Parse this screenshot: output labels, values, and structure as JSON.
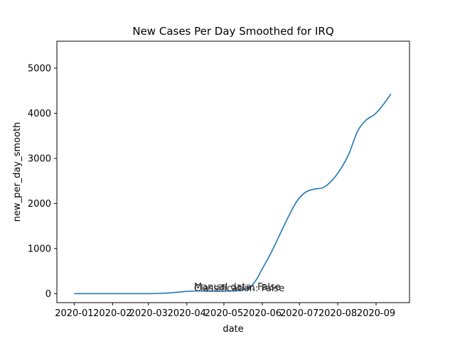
{
  "chart_data": {
    "type": "line",
    "title": "New Cases Per Day Smoothed for IRQ",
    "xlabel": "date",
    "ylabel": "new_per_day_smooth",
    "x_ticks": [
      "2020-01",
      "2020-02",
      "2020-03",
      "2020-04",
      "2020-05",
      "2020-06",
      "2020-07",
      "2020-08",
      "2020-09"
    ],
    "y_ticks": [
      0,
      1000,
      2000,
      3000,
      4000,
      5000
    ],
    "xlim": [
      "2019-12-18",
      "2020-09-28"
    ],
    "ylim": [
      -200,
      5600
    ],
    "grid": false,
    "color": "#1f77b4",
    "annotations": [
      "Manual data: False",
      "Classification: False"
    ],
    "series": [
      {
        "x": [
          "2020-01-01",
          "2020-01-15",
          "2020-02-01",
          "2020-02-15",
          "2020-03-01",
          "2020-03-10",
          "2020-03-20",
          "2020-04-01",
          "2020-04-10",
          "2020-04-20",
          "2020-05-01",
          "2020-05-15",
          "2020-05-22",
          "2020-05-27",
          "2020-06-01",
          "2020-06-08",
          "2020-06-15",
          "2020-06-22",
          "2020-06-29",
          "2020-07-06",
          "2020-07-13",
          "2020-07-20",
          "2020-07-27",
          "2020-08-03",
          "2020-08-10",
          "2020-08-17",
          "2020-08-24",
          "2020-08-31",
          "2020-09-07",
          "2020-09-13"
        ],
        "values": [
          0,
          0,
          0,
          0,
          0,
          5,
          20,
          50,
          60,
          55,
          55,
          75,
          150,
          300,
          550,
          900,
          1300,
          1700,
          2050,
          2250,
          2320,
          2350,
          2500,
          2750,
          3100,
          3600,
          3850,
          3980,
          4200,
          4430
        ]
      }
    ]
  }
}
